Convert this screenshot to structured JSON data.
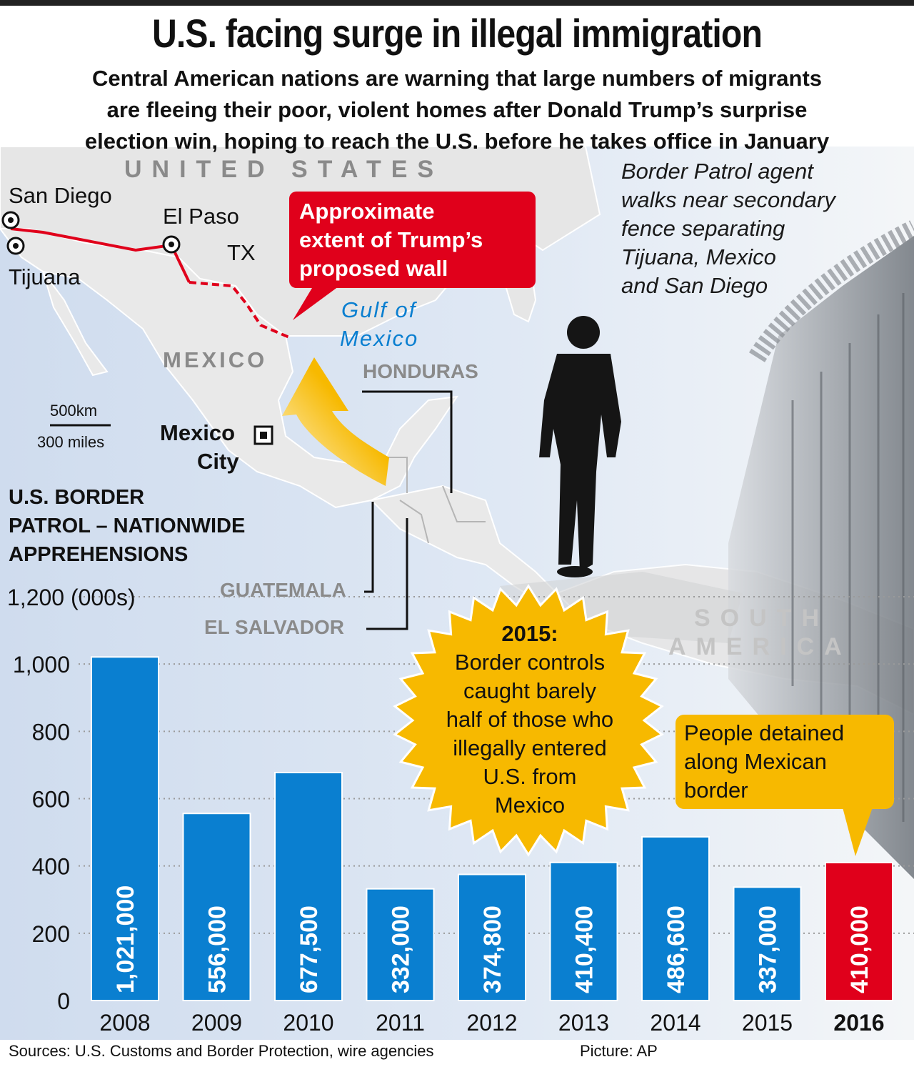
{
  "header": {
    "title": "U.S. facing surge in illegal immigration",
    "subtitle_lines": [
      "Central American nations are warning that large numbers of migrants",
      "are fleeing their poor, violent homes after Donald Trump’s surprise",
      "election win, hoping to reach the U.S. before he takes office in January"
    ]
  },
  "map": {
    "united_states": "UNITED STATES",
    "san_diego": "San Diego",
    "tijuana": "Tijuana",
    "el_paso": "El Paso",
    "tx": "TX",
    "gulf_line1": "Gulf of",
    "gulf_line2": "Mexico",
    "mexico": "MEXICO",
    "honduras": "HONDURAS",
    "scale_km": "500km",
    "scale_mi": "300 miles",
    "mexico_city_line1": "Mexico",
    "mexico_city_line2": "City",
    "guatemala": "GUATEMALA",
    "el_salvador": "EL SALVADOR",
    "south": "SOUTH",
    "america": "AMERICA",
    "wall_callout_lines": [
      "Approximate",
      "extent of Trump’s",
      "proposed wall"
    ]
  },
  "photo_caption_lines": [
    "Border Patrol agent",
    "walks near secondary",
    "fence separating",
    "Tijuana, Mexico",
    "and San Diego"
  ],
  "colors": {
    "bar": "#0a7fd0",
    "bar_highlight": "#e0001b",
    "callout_yellow": "#f7b900",
    "wall_red": "#e0001b",
    "map_land": "#e3e3e3",
    "map_sea": "#d4e2f2"
  },
  "chart_data": {
    "type": "bar",
    "title_lines": [
      "U.S. BORDER",
      "PATROL – NATIONWIDE",
      "APPREHENSIONS"
    ],
    "unit": "(000s)",
    "categories": [
      "2008",
      "2009",
      "2010",
      "2011",
      "2012",
      "2013",
      "2014",
      "2015",
      "2016"
    ],
    "values": [
      1021,
      556,
      677.5,
      332,
      374.8,
      410.4,
      486.6,
      337,
      410
    ],
    "value_labels": [
      "1,021,000",
      "556,000",
      "677,500",
      "332,000",
      "374,800",
      "410,400",
      "486,600",
      "337,000",
      "410,000"
    ],
    "highlight_category": "2016",
    "y_ticks": [
      0,
      200,
      400,
      600,
      800,
      1000,
      1200
    ],
    "y_tick_labels": [
      "0",
      "200",
      "400",
      "600",
      "800",
      "1,000",
      "1,200"
    ],
    "ylim": [
      0,
      1200
    ],
    "grid": "dotted horizontal",
    "annotation_2015_lines": [
      "2015:",
      "Border controls",
      "caught barely",
      "half of those who",
      "illegally entered",
      "U.S. from",
      "Mexico"
    ],
    "annotation_2016_lines": [
      "People detained",
      "along Mexican",
      "border"
    ]
  },
  "footer": {
    "sources": "Sources: U.S. Customs and Border Protection, wire agencies",
    "picture": "Picture: AP"
  }
}
